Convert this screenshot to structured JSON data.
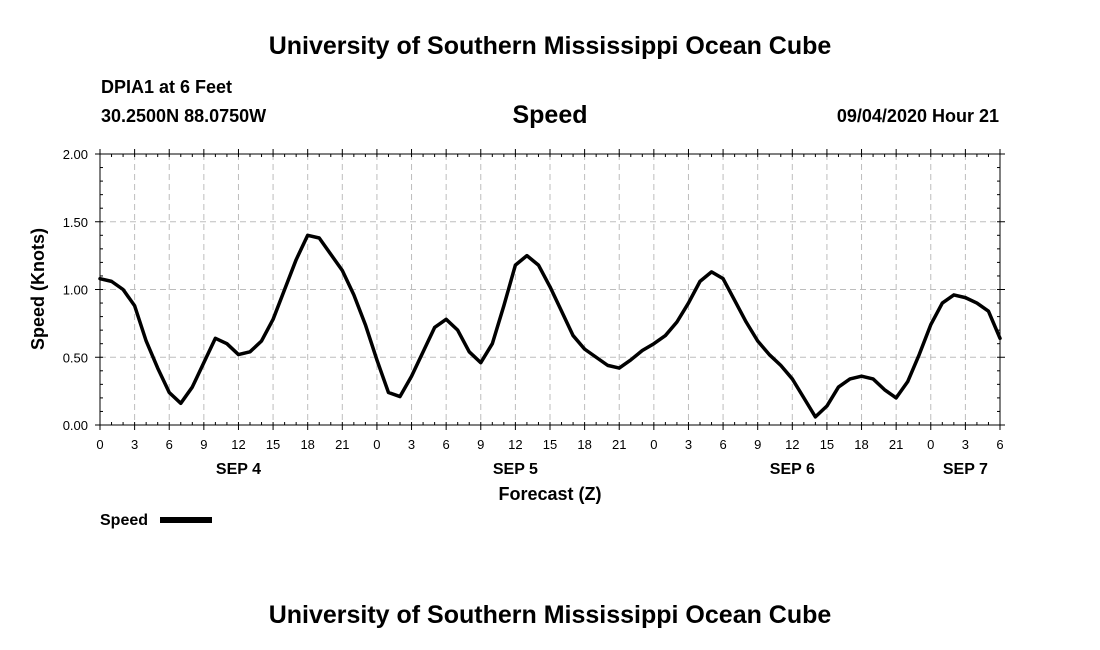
{
  "header": {
    "title": "University of Southern Mississippi Ocean Cube",
    "station": "DPIA1 at 6 Feet",
    "coords": "30.2500N 88.0750W",
    "datetime": "09/04/2020 Hour 21"
  },
  "footer": {
    "title": "University of Southern Mississippi Ocean Cube"
  },
  "chart_data": {
    "type": "line",
    "title": "Speed",
    "xlabel": "Forecast (Z)",
    "ylabel": "Speed (Knots)",
    "ylim": [
      0,
      2
    ],
    "xlim": [
      0,
      78
    ],
    "yticks": [
      "0.00",
      "0.50",
      "1.00",
      "1.50",
      "2.00"
    ],
    "xticks": [
      "0",
      "3",
      "6",
      "9",
      "12",
      "15",
      "18",
      "21",
      "0",
      "3",
      "6",
      "9",
      "12",
      "15",
      "18",
      "21",
      "0",
      "3",
      "6",
      "9",
      "12",
      "15",
      "18",
      "21",
      "0",
      "3",
      "6"
    ],
    "day_labels": [
      {
        "label": "SEP 4",
        "x": 12
      },
      {
        "label": "SEP 5",
        "x": 36
      },
      {
        "label": "SEP 6",
        "x": 60
      },
      {
        "label": "SEP 7",
        "x": 75
      }
    ],
    "grid": true,
    "legend": "bottom-left",
    "series": [
      {
        "name": "Speed",
        "x": [
          0,
          1,
          2,
          3,
          4,
          5,
          6,
          7,
          8,
          9,
          10,
          11,
          12,
          13,
          14,
          15,
          16,
          17,
          18,
          19,
          20,
          21,
          22,
          23,
          24,
          25,
          26,
          27,
          28,
          29,
          30,
          31,
          32,
          33,
          34,
          35,
          36,
          37,
          38,
          39,
          40,
          41,
          42,
          43,
          44,
          45,
          46,
          47,
          48,
          49,
          50,
          51,
          52,
          53,
          54,
          55,
          56,
          57,
          58,
          59,
          60,
          61,
          62,
          63,
          64,
          65,
          66,
          67,
          68,
          69,
          70,
          71,
          72,
          73,
          74,
          75,
          76,
          77,
          78
        ],
        "values": [
          1.08,
          1.06,
          1.0,
          0.88,
          0.62,
          0.42,
          0.24,
          0.16,
          0.28,
          0.46,
          0.64,
          0.6,
          0.52,
          0.54,
          0.62,
          0.78,
          1.0,
          1.22,
          1.4,
          1.38,
          1.26,
          1.14,
          0.96,
          0.74,
          0.48,
          0.24,
          0.21,
          0.36,
          0.54,
          0.72,
          0.78,
          0.7,
          0.54,
          0.46,
          0.6,
          0.88,
          1.18,
          1.25,
          1.18,
          1.02,
          0.84,
          0.66,
          0.56,
          0.5,
          0.44,
          0.42,
          0.48,
          0.55,
          0.6,
          0.66,
          0.76,
          0.9,
          1.06,
          1.13,
          1.08,
          0.92,
          0.76,
          0.62,
          0.52,
          0.44,
          0.34,
          0.2,
          0.06,
          0.14,
          0.28,
          0.34,
          0.36,
          0.34,
          0.26,
          0.2,
          0.32,
          0.52,
          0.74,
          0.9,
          0.96,
          0.94,
          0.9,
          0.84,
          0.64
        ]
      }
    ]
  },
  "legend": {
    "label": "Speed"
  }
}
